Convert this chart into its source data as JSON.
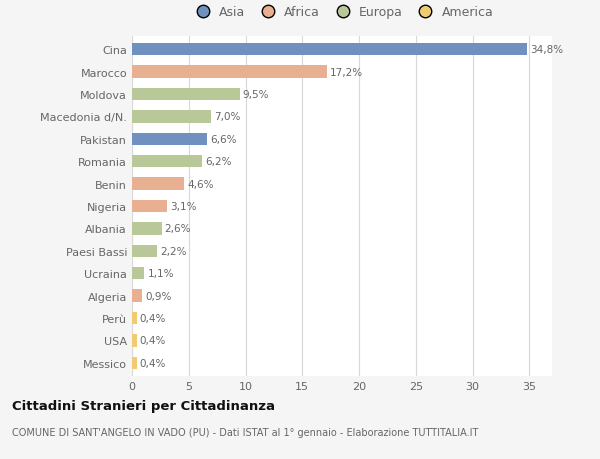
{
  "categories": [
    "Messico",
    "USA",
    "Perù",
    "Algeria",
    "Ucraina",
    "Paesi Bassi",
    "Albania",
    "Nigeria",
    "Benin",
    "Romania",
    "Pakistan",
    "Macedonia d/N.",
    "Moldova",
    "Marocco",
    "Cina"
  ],
  "values": [
    0.4,
    0.4,
    0.4,
    0.9,
    1.1,
    2.2,
    2.6,
    3.1,
    4.6,
    6.2,
    6.6,
    7.0,
    9.5,
    17.2,
    34.8
  ],
  "continents": [
    "America",
    "America",
    "America",
    "Africa",
    "Europa",
    "Europa",
    "Europa",
    "Africa",
    "Africa",
    "Europa",
    "Asia",
    "Europa",
    "Europa",
    "Africa",
    "Asia"
  ],
  "labels": [
    "0,4%",
    "0,4%",
    "0,4%",
    "0,9%",
    "1,1%",
    "2,2%",
    "2,6%",
    "3,1%",
    "4,6%",
    "6,2%",
    "6,6%",
    "7,0%",
    "9,5%",
    "17,2%",
    "34,8%"
  ],
  "colors": {
    "Asia": "#7090c0",
    "Africa": "#e8b090",
    "Europa": "#b8c898",
    "America": "#f0cb70"
  },
  "legend_labels": [
    "Asia",
    "Africa",
    "Europa",
    "America"
  ],
  "legend_colors": [
    "#7090c0",
    "#e8b090",
    "#b8c898",
    "#f0cb70"
  ],
  "title": "Cittadini Stranieri per Cittadinanza",
  "subtitle": "COMUNE DI SANT'ANGELO IN VADO (PU) - Dati ISTAT al 1° gennaio - Elaborazione TUTTITALIA.IT",
  "xlim": [
    0,
    37
  ],
  "xticks": [
    0,
    5,
    10,
    15,
    20,
    25,
    30,
    35
  ],
  "background_color": "#f5f5f5",
  "bar_background": "#ffffff",
  "grid_color": "#d8d8d8",
  "label_color": "#666666",
  "title_color": "#111111",
  "subtitle_color": "#666666"
}
